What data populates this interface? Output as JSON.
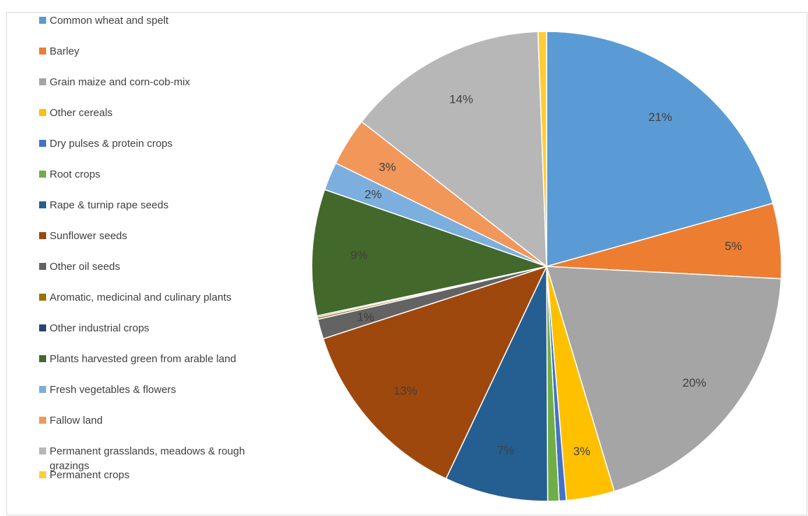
{
  "chart_data": {
    "type": "pie",
    "title": "",
    "legend_position": "left",
    "slices": [
      {
        "label": "Common wheat and spelt",
        "value": 21.2,
        "data_label": "21%",
        "color": "#5b9bd5"
      },
      {
        "label": "Barley",
        "value": 5.3,
        "data_label": "5%",
        "color": "#ed7d31"
      },
      {
        "label": "Grain maize and corn-cob-mix",
        "value": 20.0,
        "data_label": "20%",
        "color": "#a5a5a5"
      },
      {
        "label": "Other cereals",
        "value": 3.4,
        "data_label": "3%",
        "color": "#ffc000"
      },
      {
        "label": "Dry pulses & protein crops",
        "value": 0.5,
        "data_label": "",
        "color": "#4472c4"
      },
      {
        "label": "Root crops",
        "value": 0.8,
        "data_label": "",
        "color": "#70ad47"
      },
      {
        "label": "Rape & turnip rape seeds",
        "value": 7.3,
        "data_label": "7%",
        "color": "#255e91"
      },
      {
        "label": "Sunflower seeds",
        "value": 13.3,
        "data_label": "13%",
        "color": "#9e480e"
      },
      {
        "label": "Other oil seeds",
        "value": 1.4,
        "data_label": "1%",
        "color": "#636363"
      },
      {
        "label": "Aromatic, medicinal and culinary plants",
        "value": 0.15,
        "data_label": "",
        "color": "#997300"
      },
      {
        "label": "Other industrial crops",
        "value": 0.1,
        "data_label": "",
        "color": "#264478"
      },
      {
        "label": "Plants harvested green from arable land",
        "value": 8.9,
        "data_label": "9%",
        "color": "#43682b"
      },
      {
        "label": "Fresh vegetables & flowers",
        "value": 2.0,
        "data_label": "2%",
        "color": "#7cafdd"
      },
      {
        "label": "Fallow land",
        "value": 3.4,
        "data_label": "3%",
        "color": "#f1975a"
      },
      {
        "label": "Permanent grasslands, meadows & rough grazings",
        "value": 14.2,
        "data_label": "14%",
        "color": "#b7b7b7"
      },
      {
        "label": "Permanent crops",
        "value": 0.6,
        "data_label": "",
        "color": "#ffcd33"
      }
    ]
  }
}
